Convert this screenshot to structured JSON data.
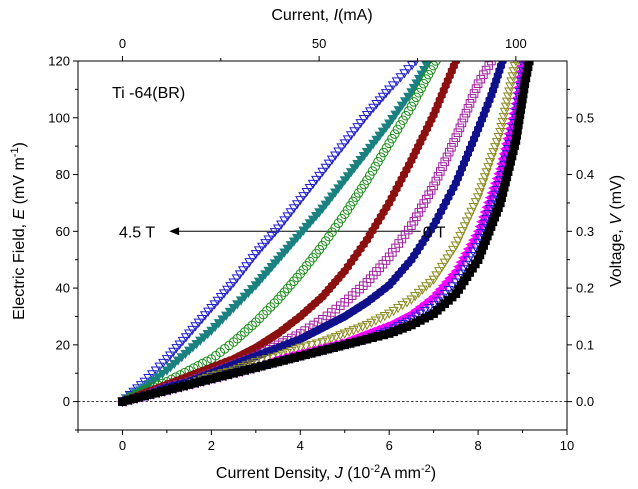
{
  "chart_data": {
    "type": "scatter",
    "title": "",
    "annotation_label": "Ti -64(BR)",
    "xlabel": {
      "prefix": "Current Density, ",
      "var": "J",
      "unit_open": " (10",
      "unit_exp": "-2",
      "unit_mid": "A mm",
      "unit_exp2": "-2",
      "unit_close": ")"
    },
    "ylabel": {
      "prefix": "Electric Field, ",
      "var": "E",
      "unit_open": " (mV m",
      "unit_exp": "-1",
      "unit_close": ")"
    },
    "x2label": {
      "prefix": "Current, ",
      "var": "I",
      "unit": "(mA)"
    },
    "y2label": {
      "prefix": "Voltage, ",
      "var": "V",
      "unit": " (mV)"
    },
    "xlim": [
      -1,
      10
    ],
    "ylim": [
      -10,
      120
    ],
    "xticks": [
      "0",
      "2",
      "4",
      "6",
      "8",
      "10"
    ],
    "yticks": [
      "0",
      "20",
      "40",
      "60",
      "80",
      "100",
      "120"
    ],
    "x2ticks": [
      "0",
      "50",
      "100"
    ],
    "x2_per_x": 11.3,
    "y2ticks": [
      "0.0",
      "0.1",
      "0.2",
      "0.3",
      "0.4",
      "0.5"
    ],
    "y2_per_y": 0.005,
    "arrow": {
      "from_label": "0 T",
      "to_label": "4.5 T",
      "y": 60,
      "x_from": 8.15,
      "x_to": 1.05
    },
    "dashed_zero_line": true,
    "series": [
      {
        "marker": "tri-down-open",
        "color": "#1f1fcc",
        "values": [
          [
            0,
            0
          ],
          [
            0.5,
            7
          ],
          [
            1,
            15
          ],
          [
            1.5,
            24
          ],
          [
            2,
            33
          ],
          [
            2.5,
            42
          ],
          [
            3,
            52
          ],
          [
            3.5,
            61
          ],
          [
            4,
            71
          ],
          [
            4.5,
            81
          ],
          [
            5,
            91
          ],
          [
            5.5,
            101
          ],
          [
            6,
            110
          ],
          [
            6.6,
            120
          ]
        ]
      },
      {
        "marker": "tri-down-filled",
        "color": "#1a8080",
        "values": [
          [
            0,
            0
          ],
          [
            0.5,
            5
          ],
          [
            1,
            11
          ],
          [
            1.5,
            18
          ],
          [
            2,
            25
          ],
          [
            2.5,
            33
          ],
          [
            3,
            41
          ],
          [
            3.5,
            50
          ],
          [
            4,
            59
          ],
          [
            4.5,
            68
          ],
          [
            5,
            78
          ],
          [
            5.5,
            88
          ],
          [
            6,
            98
          ],
          [
            6.5,
            109
          ],
          [
            6.9,
            120
          ]
        ]
      },
      {
        "marker": "circle-open",
        "color": "#1a8c1a",
        "values": [
          [
            0,
            0
          ],
          [
            0.5,
            4
          ],
          [
            1,
            7
          ],
          [
            1.5,
            11
          ],
          [
            2,
            15
          ],
          [
            2.5,
            21
          ],
          [
            3,
            28
          ],
          [
            3.5,
            36
          ],
          [
            4,
            45
          ],
          [
            4.5,
            55
          ],
          [
            5,
            66
          ],
          [
            5.5,
            78
          ],
          [
            6,
            91
          ],
          [
            6.5,
            104
          ],
          [
            7.05,
            120
          ]
        ]
      },
      {
        "marker": "hex-filled",
        "color": "#8b1010",
        "values": [
          [
            0,
            0
          ],
          [
            0.5,
            3
          ],
          [
            1,
            6
          ],
          [
            1.5,
            9
          ],
          [
            2,
            12
          ],
          [
            2.5,
            15
          ],
          [
            3,
            19
          ],
          [
            3.5,
            24
          ],
          [
            4,
            30
          ],
          [
            4.5,
            37
          ],
          [
            5,
            46
          ],
          [
            5.5,
            57
          ],
          [
            6,
            70
          ],
          [
            6.5,
            85
          ],
          [
            7,
            101
          ],
          [
            7.5,
            120
          ]
        ]
      },
      {
        "marker": "square-open",
        "color": "#a020a0",
        "values": [
          [
            0,
            0
          ],
          [
            0.5,
            2
          ],
          [
            1,
            5
          ],
          [
            1.5,
            7
          ],
          [
            2,
            10
          ],
          [
            2.5,
            13
          ],
          [
            3,
            16
          ],
          [
            3.5,
            20
          ],
          [
            4,
            24
          ],
          [
            4.5,
            29
          ],
          [
            5,
            35
          ],
          [
            5.5,
            42
          ],
          [
            6,
            51
          ],
          [
            6.5,
            62
          ],
          [
            7,
            76
          ],
          [
            7.5,
            93
          ],
          [
            8,
            112
          ],
          [
            8.3,
            120
          ]
        ]
      },
      {
        "marker": "hex-filled",
        "color": "#10108b",
        "values": [
          [
            0,
            0
          ],
          [
            0.5,
            2
          ],
          [
            1,
            5
          ],
          [
            1.5,
            7
          ],
          [
            2,
            10
          ],
          [
            2.5,
            13
          ],
          [
            3,
            16
          ],
          [
            3.5,
            19
          ],
          [
            4,
            22
          ],
          [
            4.5,
            26
          ],
          [
            5,
            30
          ],
          [
            5.5,
            35
          ],
          [
            6,
            41
          ],
          [
            6.5,
            50
          ],
          [
            7,
            62
          ],
          [
            7.5,
            77
          ],
          [
            8,
            96
          ],
          [
            8.3,
            108
          ],
          [
            8.55,
            120
          ]
        ]
      },
      {
        "marker": "tri-down-open",
        "color": "#8b8b20",
        "values": [
          [
            0,
            0
          ],
          [
            0.5,
            2
          ],
          [
            1,
            4
          ],
          [
            1.5,
            6
          ],
          [
            2,
            9
          ],
          [
            2.5,
            11
          ],
          [
            3,
            14
          ],
          [
            3.5,
            16
          ],
          [
            4,
            19
          ],
          [
            4.5,
            21
          ],
          [
            5,
            24
          ],
          [
            5.5,
            27
          ],
          [
            6,
            31
          ],
          [
            6.5,
            36
          ],
          [
            7,
            43
          ],
          [
            7.5,
            55
          ],
          [
            8,
            72
          ],
          [
            8.5,
            95
          ],
          [
            8.85,
            120
          ]
        ]
      },
      {
        "marker": "tri-left-filled",
        "color": "#ff00ff",
        "values": [
          [
            0,
            0
          ],
          [
            0.5,
            2
          ],
          [
            1,
            4
          ],
          [
            1.5,
            6
          ],
          [
            2,
            8
          ],
          [
            2.5,
            10
          ],
          [
            3,
            12
          ],
          [
            3.5,
            15
          ],
          [
            4,
            17
          ],
          [
            4.5,
            19
          ],
          [
            5,
            21
          ],
          [
            5.5,
            24
          ],
          [
            6,
            27
          ],
          [
            6.5,
            31
          ],
          [
            7,
            37
          ],
          [
            7.5,
            46
          ],
          [
            8,
            60
          ],
          [
            8.5,
            82
          ],
          [
            8.85,
            105
          ],
          [
            9,
            120
          ]
        ]
      },
      {
        "marker": "tri-down-open",
        "color": "#1f1fcc",
        "values": [
          [
            0,
            0
          ],
          [
            0.5,
            2
          ],
          [
            1,
            4
          ],
          [
            1.5,
            6
          ],
          [
            2,
            8
          ],
          [
            2.5,
            10
          ],
          [
            3,
            12
          ],
          [
            3.5,
            14
          ],
          [
            4,
            16
          ],
          [
            4.5,
            18
          ],
          [
            5,
            20
          ],
          [
            5.5,
            22
          ],
          [
            6,
            25
          ],
          [
            6.5,
            29
          ],
          [
            7,
            34
          ],
          [
            7.5,
            42
          ],
          [
            8,
            56
          ],
          [
            8.5,
            78
          ],
          [
            8.85,
            100
          ],
          [
            9.05,
            120
          ]
        ]
      },
      {
        "marker": "square-filled",
        "color": "#000000",
        "values": [
          [
            0,
            0
          ],
          [
            0.5,
            2
          ],
          [
            1,
            4
          ],
          [
            1.5,
            6
          ],
          [
            2,
            8
          ],
          [
            2.5,
            10
          ],
          [
            3,
            12
          ],
          [
            3.5,
            14
          ],
          [
            4,
            16
          ],
          [
            4.5,
            18
          ],
          [
            5,
            20
          ],
          [
            5.5,
            22
          ],
          [
            6,
            24
          ],
          [
            6.5,
            27
          ],
          [
            7,
            31
          ],
          [
            7.5,
            38
          ],
          [
            8,
            50
          ],
          [
            8.5,
            70
          ],
          [
            8.85,
            92
          ],
          [
            9.05,
            112
          ],
          [
            9.15,
            120
          ]
        ]
      }
    ]
  }
}
